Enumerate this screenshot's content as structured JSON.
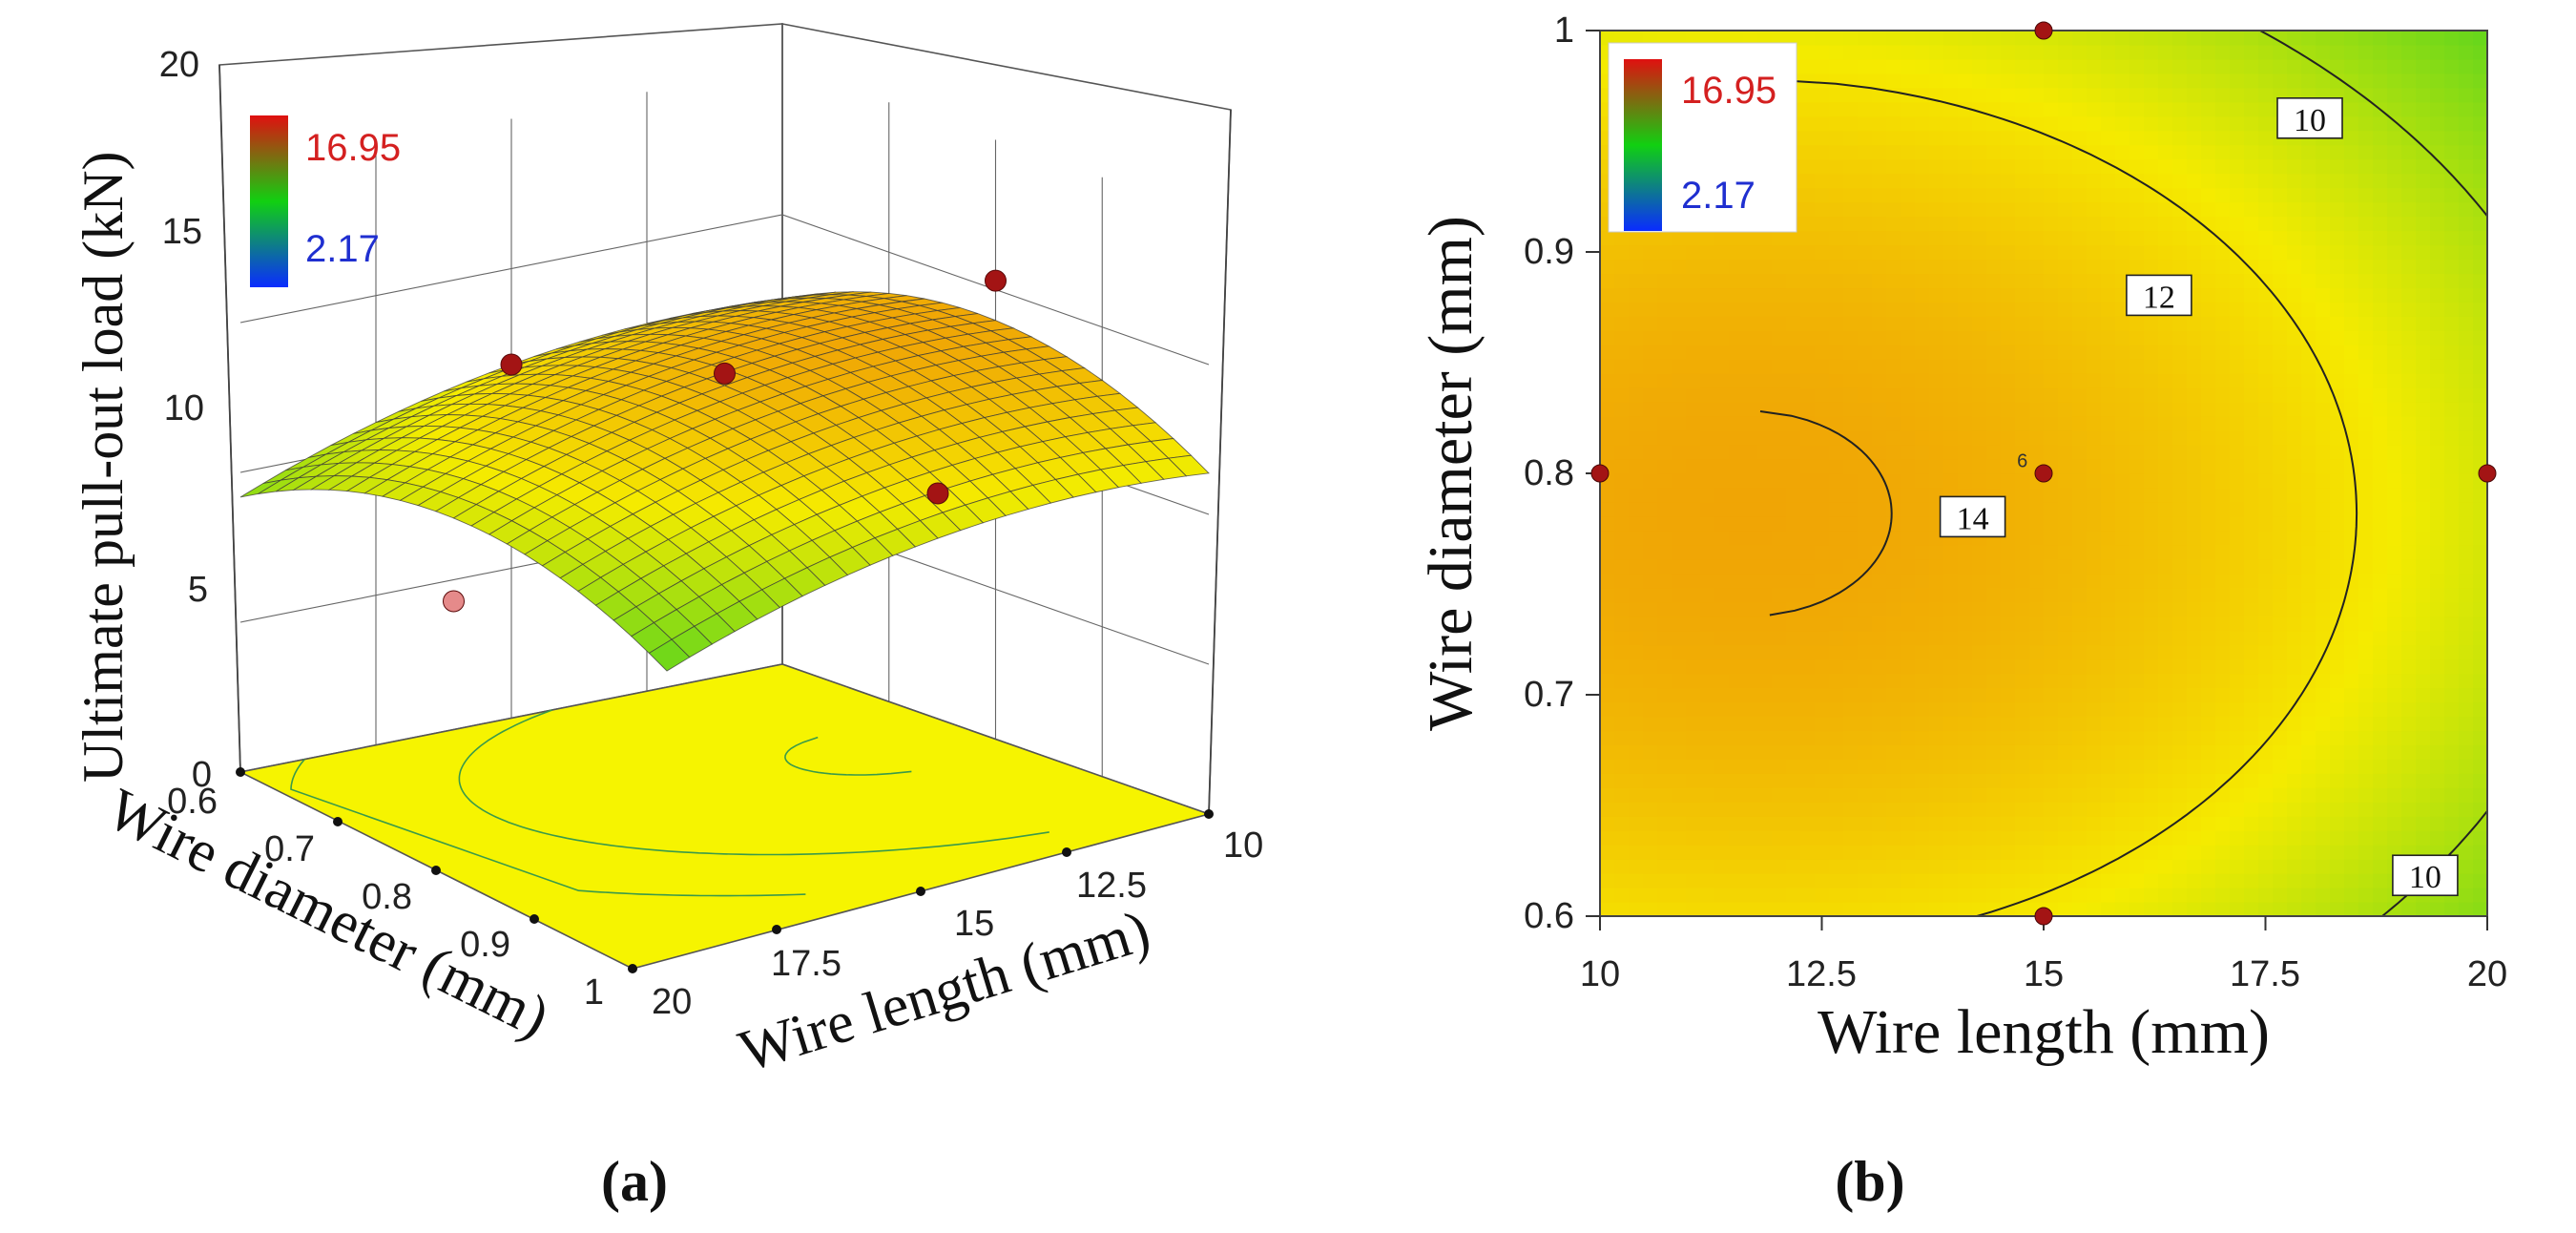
{
  "chart_data": [
    {
      "type": "surface3d",
      "panel_label": "(a)",
      "zlabel": "Ultimate pull-out load (kN)",
      "xlabel": "Wire length (mm)",
      "ylabel": "Wire diameter (mm)",
      "z_ticks": [
        "0",
        "5",
        "10",
        "15",
        "20"
      ],
      "x_ticks": [
        "10",
        "12.5",
        "15",
        "17.5",
        "20"
      ],
      "y_ticks": [
        "0.6",
        "0.7",
        "0.8",
        "0.9",
        "1"
      ],
      "zlim": [
        0,
        20
      ],
      "xlim": [
        10,
        20
      ],
      "ylim": [
        0.6,
        1.0
      ],
      "legend": {
        "max": "16.95",
        "min": "2.17",
        "max_color": "#d42020",
        "min_color": "#1f2fd0"
      },
      "model": {
        "form": "z = c0 + cL*(L-15) + cLL*(L-15)^2 + cD*(D-0.8) + cDD*(D-0.8)^2",
        "c0": 13.6,
        "cL": -0.3,
        "cLL": -0.045,
        "cD": -2.0,
        "cDD": -55.0
      },
      "design_points": [
        {
          "length": 10,
          "diameter": 0.8,
          "load": 15.3
        },
        {
          "length": 15,
          "diameter": 0.6,
          "load": 11.8
        },
        {
          "length": 15,
          "diameter": 1.0,
          "load": 12.5
        },
        {
          "length": 20,
          "diameter": 0.8,
          "load": 8.2
        },
        {
          "length": 15,
          "diameter": 0.8,
          "load": 14.0
        }
      ]
    },
    {
      "type": "contour",
      "panel_label": "(b)",
      "xlabel": "Wire length (mm)",
      "ylabel": "Wire diameter (mm)",
      "x_ticks": [
        "10",
        "12.5",
        "15",
        "17.5",
        "20"
      ],
      "y_ticks": [
        "0.6",
        "0.7",
        "0.8",
        "0.9",
        "1"
      ],
      "xlim": [
        10,
        20
      ],
      "ylim": [
        0.6,
        1.0
      ],
      "legend": {
        "max": "16.95",
        "min": "2.17",
        "max_color": "#d42020",
        "min_color": "#1f2fd0"
      },
      "contour_levels": [
        14,
        12,
        10
      ],
      "contour_labels": [
        {
          "text": "14",
          "length": 14.2,
          "diameter": 0.78
        },
        {
          "text": "12",
          "length": 16.3,
          "diameter": 0.88
        },
        {
          "text": "10",
          "length": 18.0,
          "diameter": 0.96
        },
        {
          "text": "10",
          "length": 19.3,
          "diameter": 0.618
        }
      ],
      "replicate_count_label": {
        "text": "6",
        "length": 14.7,
        "diameter": 0.802
      },
      "design_points": [
        {
          "length": 10,
          "diameter": 0.8
        },
        {
          "length": 15,
          "diameter": 0.8
        },
        {
          "length": 20,
          "diameter": 0.8
        },
        {
          "length": 15,
          "diameter": 0.6
        },
        {
          "length": 15,
          "diameter": 1.0
        }
      ]
    }
  ],
  "colors": {
    "high": "#e05a10",
    "mid": "#f5f000",
    "low": "#18d018",
    "point": "#a31414",
    "point_below": "#e58a8a"
  }
}
